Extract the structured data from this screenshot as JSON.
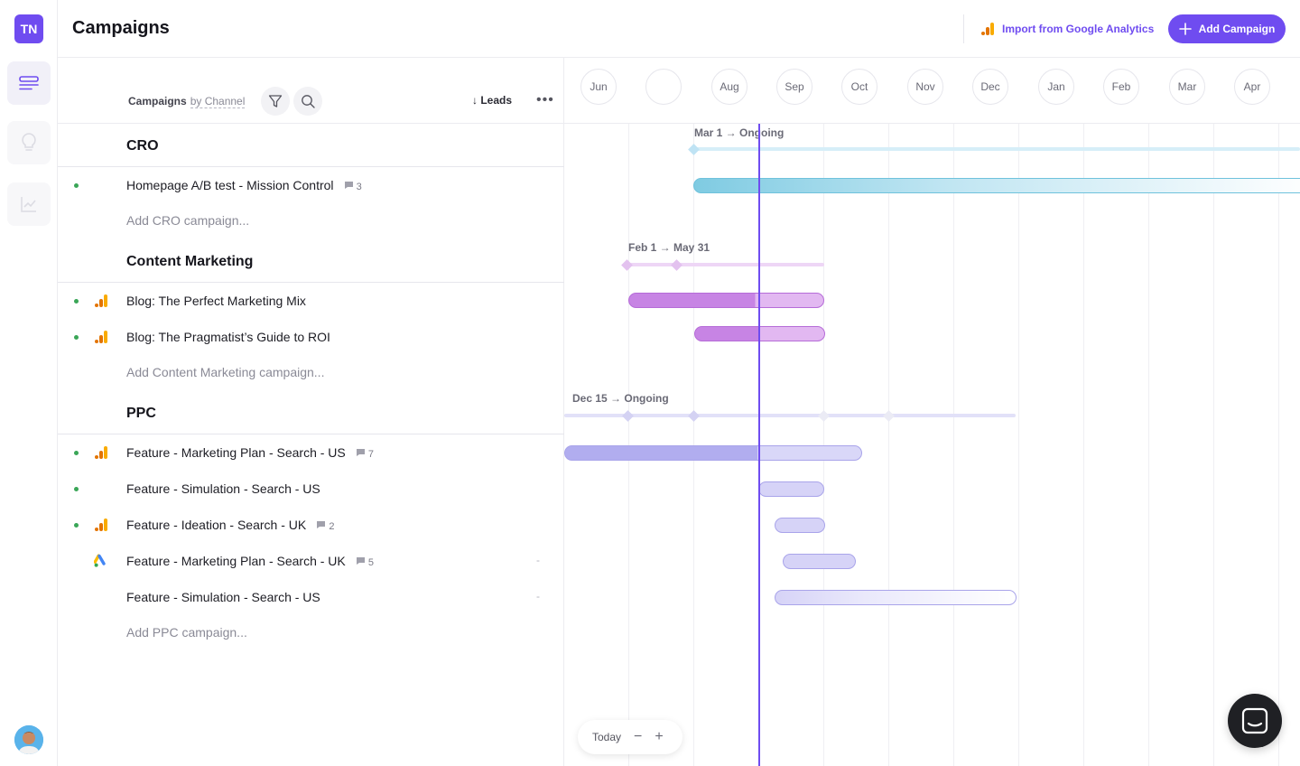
{
  "rail": {
    "logo": "TN",
    "items": [
      {
        "name": "campaigns",
        "icon": "list-icon",
        "active": true
      },
      {
        "name": "ideas",
        "icon": "lightbulb-icon",
        "active": false
      },
      {
        "name": "analytics",
        "icon": "chart-icon",
        "active": false
      }
    ]
  },
  "header": {
    "title": "Campaigns",
    "import_label": "Import from Google Analytics",
    "add_label": "Add Campaign",
    "accent": "#6f4cf0"
  },
  "toolbar": {
    "campaigns_label": "Campaigns",
    "by_label": "by Channel",
    "sort_label": "Leads",
    "sort_arrow": "↓",
    "more_label": "•••"
  },
  "groups": [
    {
      "title": "CRO",
      "campaigns": [
        {
          "name": "Homepage A/B test - Mission Control",
          "status": "active",
          "source": "none",
          "comments": "3"
        }
      ],
      "add_label": "Add CRO campaign..."
    },
    {
      "title": "Content Marketing",
      "campaigns": [
        {
          "name": "Blog: The Perfect Marketing Mix",
          "status": "active",
          "source": "google-analytics",
          "comments": ""
        },
        {
          "name": "Blog: The Pragmatist’s Guide to ROI",
          "status": "active",
          "source": "google-analytics",
          "comments": ""
        }
      ],
      "add_label": "Add Content Marketing campaign..."
    },
    {
      "title": "PPC",
      "campaigns": [
        {
          "name": "Feature - Marketing Plan - Search - US",
          "status": "active",
          "source": "google-analytics",
          "comments": "7"
        },
        {
          "name": "Feature - Simulation - Search - US",
          "status": "active",
          "source": "none",
          "comments": ""
        },
        {
          "name": "Feature - Ideation - Search - UK",
          "status": "active",
          "source": "google-analytics",
          "comments": "2"
        },
        {
          "name": "Feature - Marketing Plan - Search - UK",
          "status": "none",
          "source": "google-ads",
          "comments": "5",
          "leads": "-"
        },
        {
          "name": "Feature - Simulation - Search - US",
          "status": "none",
          "source": "none",
          "comments": "",
          "leads": "-"
        }
      ],
      "add_label": "Add PPC campaign..."
    }
  ],
  "timeline": {
    "months": [
      "Jun",
      "",
      "Aug",
      "Sep",
      "Oct",
      "Nov",
      "Dec",
      "Jan",
      "Feb",
      "Mar",
      "Apr"
    ],
    "ranges": [
      {
        "label": "Mar 1 → Ongoing"
      },
      {
        "label": "Feb 1 → May 31"
      },
      {
        "label": "Dec 15 → Ongoing"
      }
    ],
    "today_label": "Today",
    "zoom_out": "−",
    "zoom_in": "+"
  }
}
